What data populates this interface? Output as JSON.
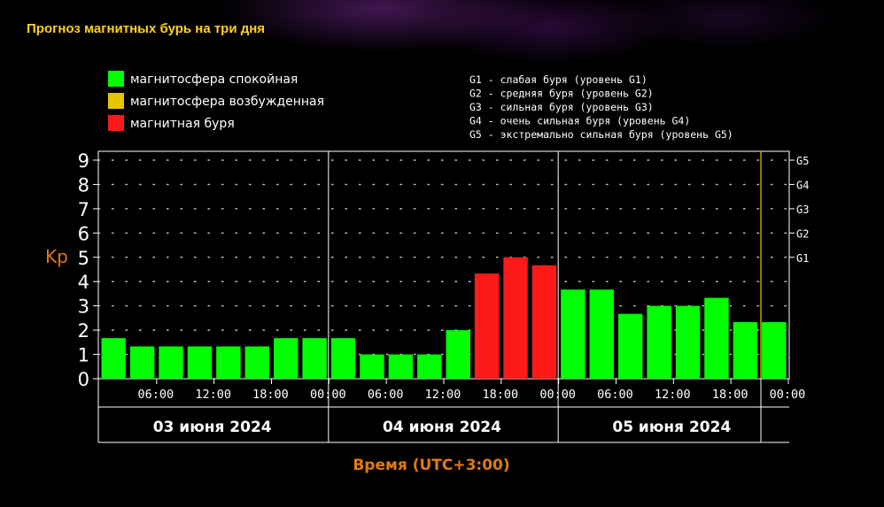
{
  "page_title": "Прогноз магнитных бурь на три дня",
  "legend_left": [
    {
      "label": "магнитосфера спокойная",
      "color": "#00ff00"
    },
    {
      "label": "магнитосфера возбужденная",
      "color": "#e6c400"
    },
    {
      "label": "магнитная буря",
      "color": "#ff1a1a"
    }
  ],
  "legend_right": [
    "G1 - слабая буря (уровень G1)",
    "G2 - средняя буря (уровень G2)",
    "G3 - сильная буря (уровень G3)",
    "G4 - очень сильная буря (уровень G4)",
    "G5 - экстремально сильная буря (уровень G5)"
  ],
  "chart_data": {
    "type": "bar",
    "ylabel": "Kp",
    "xlabel": "Время (UTC+3:00)",
    "ylim": [
      0,
      9
    ],
    "y_ticks": [
      "0",
      "1",
      "2",
      "3",
      "4",
      "5",
      "6",
      "7",
      "8",
      "9"
    ],
    "right_ticks": [
      {
        "label": "G1",
        "kp": 5
      },
      {
        "label": "G2",
        "kp": 6
      },
      {
        "label": "G3",
        "kp": 7
      },
      {
        "label": "G4",
        "kp": 8
      },
      {
        "label": "G5",
        "kp": 9
      }
    ],
    "x_tick_labels": [
      "06:00",
      "12:00",
      "18:00",
      "00:00",
      "06:00",
      "12:00",
      "18:00",
      "00:00",
      "06:00",
      "12:00",
      "18:00",
      "00:00"
    ],
    "days": [
      "03 июня 2024",
      "04 июня 2024",
      "05 июня 2024"
    ],
    "series": [
      {
        "values": [
          1.67,
          1.33,
          1.33,
          1.33,
          1.33,
          1.33,
          1.67,
          1.67,
          1.67,
          1.0,
          1.0,
          1.0,
          2.0,
          4.33,
          5.0,
          4.67,
          3.67,
          3.67,
          2.67,
          3.0,
          3.0,
          3.33,
          2.33,
          2.33
        ],
        "colors": [
          "#00ff00",
          "#00ff00",
          "#00ff00",
          "#00ff00",
          "#00ff00",
          "#00ff00",
          "#00ff00",
          "#00ff00",
          "#00ff00",
          "#00ff00",
          "#00ff00",
          "#00ff00",
          "#00ff00",
          "#ff1a1a",
          "#ff1a1a",
          "#ff1a1a",
          "#00ff00",
          "#00ff00",
          "#00ff00",
          "#00ff00",
          "#00ff00",
          "#00ff00",
          "#00ff00",
          "#00ff00"
        ]
      }
    ],
    "grid": "dotted"
  }
}
